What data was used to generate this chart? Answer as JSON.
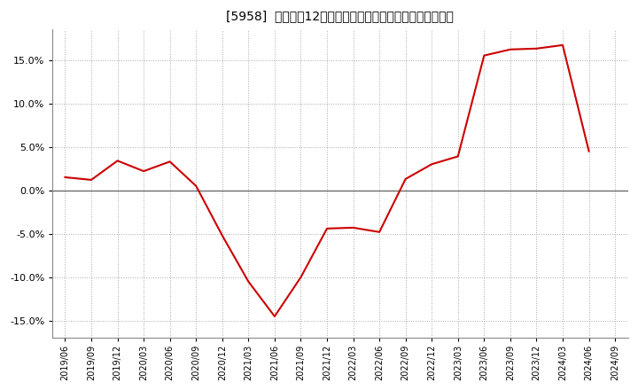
{
  "title": "[5958]  売上高の12か月移動合計の対前年同期増減率の推移",
  "line_color": "#cc0000",
  "bg_color": "#ffffff",
  "plot_bg_color": "#ffffff",
  "grid_color": "#aaaaaa",
  "ylim": [
    -0.17,
    0.185
  ],
  "yticks": [
    -0.15,
    -0.1,
    -0.05,
    0.0,
    0.05,
    0.1,
    0.15
  ],
  "dates": [
    "2019/06",
    "2019/09",
    "2019/12",
    "2020/03",
    "2020/06",
    "2020/09",
    "2020/12",
    "2021/03",
    "2021/06",
    "2021/09",
    "2021/12",
    "2022/03",
    "2022/06",
    "2022/09",
    "2022/12",
    "2023/03",
    "2023/06",
    "2023/09",
    "2023/12",
    "2024/03",
    "2024/06",
    "2024/09"
  ],
  "values": [
    0.015,
    0.012,
    0.034,
    0.022,
    0.033,
    0.005,
    -0.052,
    -0.105,
    -0.145,
    -0.1,
    -0.044,
    -0.043,
    -0.048,
    0.013,
    0.03,
    0.039,
    0.155,
    0.162,
    0.163,
    0.167,
    0.045,
    null
  ]
}
